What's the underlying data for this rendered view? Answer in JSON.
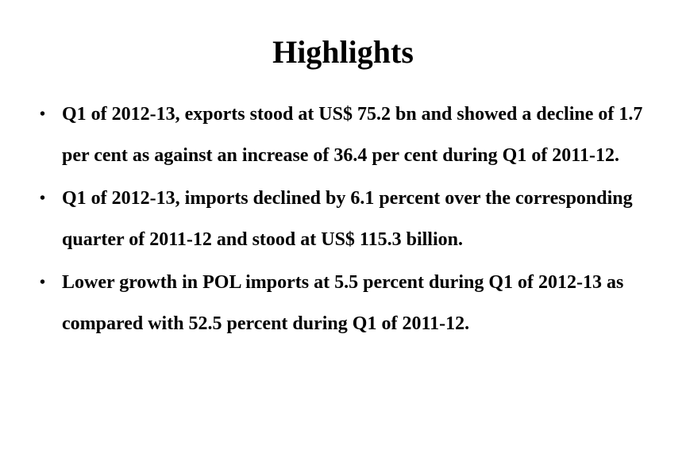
{
  "slide": {
    "title": "Highlights",
    "bullet_marker": "•",
    "bullets": [
      "Q1 of 2012-13, exports stood at US$ 75.2 bn and showed a decline of 1.7 per cent as against an increase of 36.4 per cent during Q1 of 2011-12.",
      "Q1 of 2012-13, imports declined by 6.1 percent over the corresponding quarter of 2011-12 and stood at US$ 115.3 billion.",
      "Lower growth in POL imports at 5.5 percent during Q1 of 2012-13 as compared with 52.5 percent during Q1 of 2011-12."
    ]
  }
}
